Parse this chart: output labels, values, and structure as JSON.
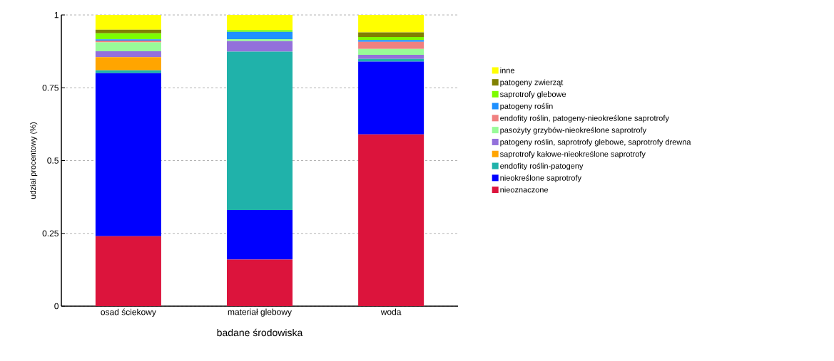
{
  "chart_data": {
    "type": "bar",
    "stacked": true,
    "xlabel": "badane środowiska",
    "ylabel": "udział procentowy (%)",
    "categories": [
      "osad ściekowy",
      "materiał glebowy",
      "woda"
    ],
    "ylim": [
      0,
      1
    ],
    "yticks": [
      0,
      0.25,
      0.5,
      0.75,
      1
    ],
    "grid": "y",
    "legend": "right",
    "series": [
      {
        "name": "nieoznaczone",
        "color": "#dc143c",
        "values": [
          0.24,
          0.16,
          0.59
        ]
      },
      {
        "name": "nieokreślone saprotrofy",
        "color": "#0000ff",
        "values": [
          0.56,
          0.17,
          0.25
        ]
      },
      {
        "name": "endofity roślin-patogeny",
        "color": "#20b2aa",
        "values": [
          0.01,
          0.544,
          0.009
        ]
      },
      {
        "name": "saprotrofy kałowe-nieokreślone saprotrofy",
        "color": "#ffa500",
        "values": [
          0.045,
          0,
          0
        ]
      },
      {
        "name": "patogeny roślin, saprotrofy glebowe, saprotrofy drewna",
        "color": "#9370db",
        "values": [
          0.02,
          0.036,
          0.014
        ]
      },
      {
        "name": "pasożyty grzybów-nieokreślone saprotrofy",
        "color": "#98fb98",
        "values": [
          0.031,
          0.007,
          0.02
        ]
      },
      {
        "name": "endofity roślin, patogeny-nieokreślone saprotrofy",
        "color": "#f08080",
        "values": [
          0.006,
          0,
          0.025
        ]
      },
      {
        "name": "patogeny roślin",
        "color": "#1e90ff",
        "values": [
          0.004,
          0.025,
          0.006
        ]
      },
      {
        "name": "saprotrofy glebowe",
        "color": "#7cfc00",
        "values": [
          0.021,
          0.006,
          0.01
        ]
      },
      {
        "name": "patogeny zwierząt",
        "color": "#808000",
        "values": [
          0.012,
          0,
          0.016
        ]
      },
      {
        "name": "inne",
        "color": "#ffff00",
        "values": [
          0.051,
          0.052,
          0.06
        ]
      }
    ]
  }
}
